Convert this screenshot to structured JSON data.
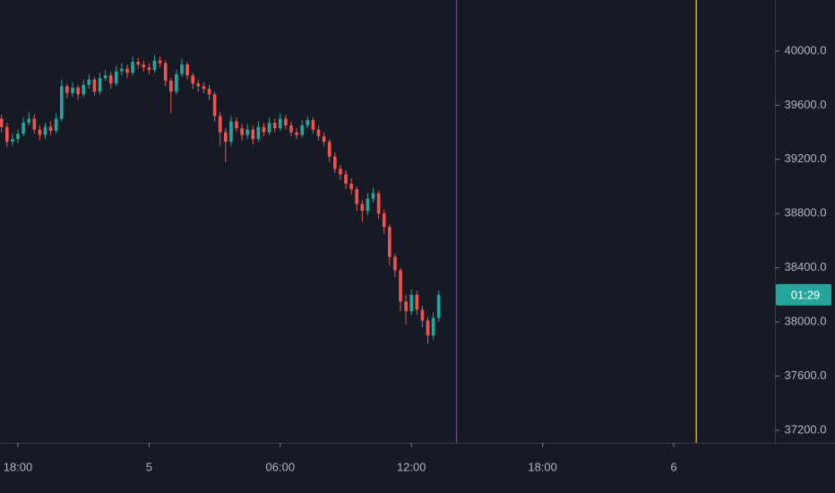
{
  "chart_data": {
    "type": "candlestick",
    "x": [
      17.25,
      17.5,
      17.75,
      18,
      18.25,
      18.5,
      18.75,
      19,
      19.25,
      19.5,
      19.75,
      20,
      20.25,
      20.5,
      20.75,
      21,
      21.25,
      21.5,
      21.75,
      22,
      22.25,
      22.5,
      22.75,
      23,
      23.25,
      23.5,
      23.75,
      24,
      24.25,
      24.5,
      24.75,
      25,
      25.25,
      25.5,
      25.75,
      26,
      26.25,
      26.5,
      26.75,
      27,
      27.25,
      27.5,
      27.75,
      28,
      28.25,
      28.5,
      28.75,
      29,
      29.25,
      29.5,
      29.75,
      30,
      30.25,
      30.5,
      30.75,
      31,
      31.25,
      31.5,
      31.75,
      32,
      32.25,
      32.5,
      32.75,
      33,
      33.25,
      33.5,
      33.75,
      34,
      34.25,
      34.5,
      34.75,
      35,
      35.25,
      35.5,
      35.75,
      36,
      36.25,
      36.5,
      36.75,
      37,
      37.25
    ],
    "open": [
      39500,
      39440,
      39330,
      39350,
      39390,
      39470,
      39500,
      39420,
      39380,
      39440,
      39410,
      39500,
      39740,
      39690,
      39730,
      39680,
      39750,
      39790,
      39700,
      39800,
      39820,
      39760,
      39850,
      39870,
      39840,
      39920,
      39900,
      39880,
      39860,
      39930,
      39910,
      39780,
      39700,
      39830,
      39900,
      39820,
      39760,
      39740,
      39720,
      39680,
      39520,
      39400,
      39330,
      39480,
      39430,
      39380,
      39420,
      39350,
      39440,
      39400,
      39470,
      39430,
      39500,
      39450,
      39400,
      39380,
      39450,
      39490,
      39420,
      39370,
      39330,
      39220,
      39130,
      39090,
      39020,
      38980,
      38870,
      38820,
      38910,
      38950,
      38800,
      38700,
      38480,
      38380,
      38150,
      38080,
      38200,
      38090,
      38010,
      37900,
      38030
    ],
    "high": [
      39530,
      39470,
      39390,
      39420,
      39510,
      39550,
      39530,
      39450,
      39470,
      39480,
      39540,
      39790,
      39760,
      39770,
      39750,
      39790,
      39830,
      39810,
      39840,
      39860,
      39850,
      39890,
      39910,
      39900,
      39960,
      39950,
      39930,
      39910,
      39970,
      39960,
      39930,
      39800,
      39860,
      39940,
      39920,
      39840,
      39790,
      39770,
      39750,
      39700,
      39550,
      39430,
      39520,
      39510,
      39460,
      39460,
      39450,
      39480,
      39470,
      39510,
      39500,
      39540,
      39530,
      39480,
      39430,
      39490,
      39520,
      39510,
      39450,
      39400,
      39350,
      39250,
      39160,
      39120,
      39060,
      39000,
      38900,
      38950,
      38990,
      38970,
      38830,
      38720,
      38500,
      38400,
      38200,
      38240,
      38230,
      38120,
      38040,
      38070,
      38230
    ],
    "low": [
      39400,
      39290,
      39300,
      39320,
      39370,
      39450,
      39390,
      39340,
      39350,
      39380,
      39390,
      39480,
      39650,
      39660,
      39640,
      39660,
      39720,
      39670,
      39680,
      39780,
      39720,
      39740,
      39820,
      39800,
      39820,
      39870,
      39850,
      39830,
      39840,
      39880,
      39740,
      39540,
      39680,
      39810,
      39790,
      39720,
      39700,
      39690,
      39640,
      39480,
      39300,
      39180,
      39300,
      39400,
      39340,
      39350,
      39310,
      39330,
      39370,
      39380,
      39400,
      39410,
      39420,
      39370,
      39350,
      39360,
      39430,
      39390,
      39340,
      39300,
      39180,
      39100,
      39050,
      38980,
      38940,
      38820,
      38740,
      38790,
      38880,
      38760,
      38650,
      38420,
      38330,
      38080,
      37980,
      38050,
      38050,
      37960,
      37840,
      37870,
      38000
    ],
    "close": [
      39440,
      39330,
      39350,
      39390,
      39470,
      39500,
      39420,
      39380,
      39440,
      39410,
      39500,
      39740,
      39690,
      39730,
      39680,
      39750,
      39790,
      39700,
      39800,
      39820,
      39760,
      39850,
      39870,
      39840,
      39920,
      39900,
      39880,
      39860,
      39930,
      39910,
      39780,
      39700,
      39830,
      39900,
      39820,
      39760,
      39740,
      39720,
      39680,
      39520,
      39400,
      39330,
      39480,
      39430,
      39380,
      39420,
      39350,
      39440,
      39400,
      39470,
      39430,
      39500,
      39450,
      39400,
      39380,
      39450,
      39490,
      39420,
      39370,
      39330,
      39220,
      39130,
      39090,
      39020,
      38980,
      38870,
      38820,
      38910,
      38950,
      38800,
      38700,
      38480,
      38380,
      38150,
      38080,
      38200,
      38090,
      38010,
      37900,
      38030,
      38200
    ],
    "up_color": "#26a69a",
    "down_color": "#ef5350",
    "xlim": [
      17.18,
      52.63
    ],
    "ylim": [
      37107,
      40377
    ],
    "xticks": [
      {
        "value": 18,
        "label": "18:00"
      },
      {
        "value": 24,
        "label": "5"
      },
      {
        "value": 30,
        "label": "06:00"
      },
      {
        "value": 36,
        "label": "12:00"
      },
      {
        "value": 42,
        "label": "18:00"
      },
      {
        "value": 48,
        "label": "6"
      }
    ],
    "yticks": [
      {
        "value": 37200,
        "label": "37200.0"
      },
      {
        "value": 37600,
        "label": "37600.0"
      },
      {
        "value": 38000,
        "label": "38000.0"
      },
      {
        "value": 38400,
        "label": "38400.0"
      },
      {
        "value": 38800,
        "label": "38800.0"
      },
      {
        "value": 39200,
        "label": "39200.0"
      },
      {
        "value": 39600,
        "label": "39600.0"
      },
      {
        "value": 40000,
        "label": "40000.0"
      }
    ],
    "markers": [
      {
        "x": 38.06,
        "color": "#9c27b0"
      },
      {
        "x": 49.03,
        "color": "#f5c518"
      }
    ],
    "countdown": "01:29",
    "grid": false
  }
}
